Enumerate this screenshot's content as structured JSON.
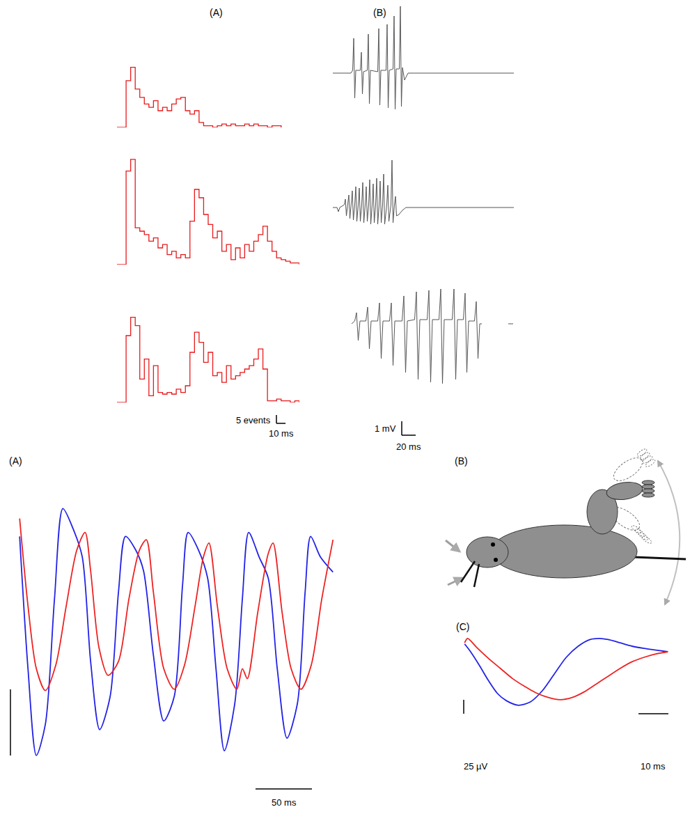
{
  "chart_data": [
    {
      "type": "histogram",
      "panel": "(A)",
      "xlim": [
        0,
        200
      ],
      "ylim": [
        0,
        65
      ],
      "tick_labels": false,
      "grid": false,
      "scale_bar": {
        "x": 10,
        "x_label": "10 ms",
        "y": 5,
        "y_label": "5 events"
      },
      "series": [
        {
          "color": "#e8191b",
          "bins": [
            0,
            5,
            10,
            15,
            20,
            25,
            30,
            35,
            40,
            45,
            50,
            55,
            60,
            65,
            70,
            75,
            80,
            85,
            90,
            95,
            100,
            105,
            110,
            115,
            120,
            125,
            130,
            135,
            140,
            145,
            150,
            155,
            160,
            165,
            170,
            175,
            180
          ],
          "values": [
            0,
            0,
            28,
            36,
            23,
            18,
            14,
            12,
            16,
            10,
            12,
            10,
            14,
            17,
            18,
            10,
            8,
            10,
            3,
            1,
            1,
            0,
            1,
            2,
            1,
            2,
            1,
            1,
            2,
            1,
            2,
            1,
            1,
            0,
            1,
            1
          ]
        },
        {
          "color": "#e8191b",
          "bins": [
            0,
            5,
            10,
            15,
            20,
            25,
            30,
            35,
            40,
            45,
            50,
            55,
            60,
            65,
            70,
            75,
            80,
            85,
            90,
            95,
            100,
            105,
            110,
            115,
            120,
            125,
            130,
            135,
            140,
            145,
            150,
            155,
            160,
            165,
            170,
            175,
            180,
            185,
            190,
            195,
            200
          ],
          "values": [
            0,
            0,
            56,
            63,
            22,
            20,
            18,
            14,
            16,
            10,
            12,
            6,
            8,
            4,
            6,
            4,
            26,
            45,
            40,
            30,
            24,
            16,
            20,
            8,
            12,
            3,
            10,
            4,
            12,
            8,
            14,
            18,
            23,
            14,
            8,
            4,
            3,
            2,
            1,
            1
          ]
        },
        {
          "color": "#e8191b",
          "bins": [
            0,
            5,
            10,
            15,
            20,
            25,
            30,
            35,
            40,
            45,
            50,
            55,
            60,
            65,
            70,
            75,
            80,
            85,
            90,
            95,
            100,
            105,
            110,
            115,
            120,
            125,
            130,
            135,
            140,
            145,
            150,
            155,
            160,
            165,
            170,
            175,
            180,
            185,
            190,
            195,
            200
          ],
          "values": [
            0,
            0,
            40,
            51,
            46,
            14,
            26,
            4,
            22,
            6,
            5,
            6,
            5,
            8,
            6,
            10,
            30,
            42,
            36,
            24,
            30,
            16,
            18,
            12,
            22,
            14,
            16,
            18,
            20,
            22,
            26,
            32,
            20,
            1,
            1,
            2,
            1,
            1,
            0,
            1
          ]
        }
      ]
    },
    {
      "type": "line",
      "panel": "(B)",
      "xlim": [
        0,
        260
      ],
      "ylim": [
        -5,
        5
      ],
      "tick_labels": false,
      "grid": false,
      "scale_bar": {
        "x": 20,
        "x_label": "20 ms",
        "y": 1,
        "y_label": "1 mV"
      },
      "series": [
        {
          "color": "#555555",
          "x": [
            0,
            26,
            28.5,
            30,
            31.5,
            33,
            39.5,
            41,
            42.5,
            44,
            49.5,
            51,
            52.5,
            54,
            64.5,
            66,
            67.5,
            69,
            76.5,
            78,
            79.5,
            81,
            86.5,
            88,
            89.5,
            91,
            95.5,
            97,
            98.5,
            100,
            103,
            108,
            260
          ],
          "values": [
            0,
            0,
            0.2,
            2.5,
            -1.8,
            0.2,
            0.2,
            1.5,
            -1.5,
            0.1,
            0.2,
            2.8,
            -2.2,
            0.2,
            0.1,
            3.2,
            -2.3,
            0.2,
            0.2,
            3.5,
            -2.5,
            0.2,
            0.3,
            4.1,
            -2.6,
            0.3,
            0.3,
            4.8,
            -2.4,
            0.4,
            -0.5,
            0,
            0
          ]
        },
        {
          "color": "#555555",
          "x": [
            0,
            6,
            8,
            10,
            16.5,
            18,
            19.5,
            21.5,
            23,
            24.5,
            26.5,
            28,
            29.5,
            31.5,
            33,
            34.5,
            36.5,
            38,
            39.5,
            41.5,
            43,
            44.5,
            46.5,
            48,
            49.5,
            51.5,
            53,
            54.5,
            56.5,
            58,
            59.5,
            61.5,
            63,
            64.5,
            66.5,
            68,
            69.5,
            71.5,
            73,
            74.5,
            77.5,
            79,
            80.5,
            83.5,
            85,
            86.5,
            88.5,
            90,
            91.5,
            95,
            100,
            105,
            260
          ],
          "values": [
            0,
            0,
            -0.3,
            0,
            0.2,
            0.6,
            -0.6,
            0.2,
            0.9,
            -0.8,
            0.2,
            1.2,
            -0.9,
            0.2,
            1.5,
            -1.0,
            0.2,
            1.4,
            -1.0,
            0.2,
            1.8,
            -1.1,
            0.2,
            1.5,
            -1.0,
            0.2,
            2.0,
            -1.2,
            0.2,
            1.7,
            -1.1,
            0.2,
            2.1,
            -1.2,
            0.2,
            1.9,
            -1.1,
            0.2,
            2.4,
            -1.2,
            0.2,
            1.6,
            -1.0,
            0.2,
            3.4,
            -1.1,
            0.2,
            0.8,
            -0.6,
            -0.5,
            -0.2,
            0,
            0
          ]
        },
        {
          "color": "#555555",
          "x": [
            27,
            31.5,
            34,
            36.5,
            39,
            47.5,
            50,
            52.5,
            55,
            64.5,
            67,
            69.5,
            72,
            81.5,
            84,
            86.5,
            89,
            99.5,
            102,
            104.5,
            107,
            117.5,
            120,
            122.5,
            125,
            135.5,
            138,
            140.5,
            143,
            152.5,
            155,
            157.5,
            160,
            171.5,
            174,
            176.5,
            179,
            187.5,
            190,
            192.5,
            195,
            203.5,
            206,
            208.5,
            211,
            214,
            216,
            252,
            259
          ],
          "values": [
            0,
            0.2,
            0.8,
            -1.2,
            0.2,
            0.2,
            1.2,
            -1.8,
            0.2,
            0.2,
            1.5,
            -2.5,
            0.2,
            0.2,
            1.5,
            -3.0,
            0.2,
            0.2,
            2.0,
            -3.5,
            0.2,
            0.3,
            2.3,
            -4.0,
            0.3,
            0.3,
            2.4,
            -4.2,
            0.3,
            0.3,
            2.5,
            -4.3,
            0.3,
            0.3,
            2.5,
            -4.0,
            0.3,
            0.3,
            2.2,
            -3.5,
            0.2,
            0.2,
            1.6,
            -2.5,
            0,
            0,
            null,
            0,
            0
          ]
        }
      ]
    },
    {
      "type": "line",
      "panel": "(A)",
      "xlim": [
        -10,
        280
      ],
      "ylim": [
        -2.6,
        2.2
      ],
      "tick_labels": false,
      "grid": false,
      "scale_bar": {
        "x": 50,
        "x_label": "50 ms",
        "y": 1
      },
      "series": [
        {
          "color": "#2323e6",
          "x": [
            0,
            7.4,
            14.8,
            22.8,
            30.9,
            38.3,
            47.5,
            55.5,
            62.9,
            70.9,
            80.2,
            87.6,
            93.8,
            103,
            109.8,
            118.5,
            127.7,
            137,
            144.4,
            149.3,
            158.6,
            166.6,
            174,
            181.4,
            190.7,
            197.4,
            203,
            212.2,
            220.3,
            228.3,
            236.9,
            246.2,
            253,
            257.9,
            266.5,
            277.7
          ],
          "values": [
            1.47,
            -0.53,
            -1.84,
            -1.37,
            0.53,
            1.89,
            1.58,
            1.16,
            -0.42,
            -1.45,
            -0.95,
            0.63,
            1.47,
            1.26,
            0.95,
            -0.32,
            -1.32,
            -0.95,
            0.74,
            1.53,
            1.26,
            0.84,
            -0.53,
            -1.77,
            -1.05,
            0.53,
            1.53,
            1.16,
            0.84,
            -0.53,
            -1.58,
            -1.05,
            0.63,
            1.47,
            1.16,
            0.93
          ]
        },
        {
          "color": "#ee2222",
          "x": [
            0,
            7.4,
            14.8,
            22.8,
            32.1,
            41.3,
            50.6,
            58,
            62.9,
            70.3,
            78.4,
            87.6,
            96.9,
            106.1,
            112.3,
            118.5,
            127.7,
            137,
            146.2,
            155.5,
            162.9,
            167.8,
            175.2,
            183.9,
            192.5,
            197.4,
            201.8,
            211,
            220.3,
            224.6,
            232.6,
            240.6,
            249.3,
            258.5,
            267.8,
            277.7
          ],
          "values": [
            1.74,
            0.42,
            -0.53,
            -0.86,
            -0.47,
            0.42,
            1.26,
            1.53,
            0.95,
            -0.21,
            -0.63,
            -0.42,
            0.53,
            1.26,
            1.42,
            0.63,
            -0.53,
            -0.84,
            -0.47,
            0.42,
            1.16,
            1.37,
            0.42,
            -0.53,
            -0.84,
            -0.53,
            -0.68,
            0.32,
            1.21,
            1.37,
            0.32,
            -0.53,
            -0.84,
            -0.47,
            0.53,
            1.42
          ]
        }
      ]
    },
    {
      "type": "line",
      "panel": "(C)",
      "xlim": [
        -1,
        74
      ],
      "ylim": [
        -120,
        60
      ],
      "tick_labels": false,
      "grid": false,
      "scale_bar": {
        "x": 10,
        "x_label": "10 ms",
        "y": 25,
        "y_label": "25 µV"
      },
      "series": [
        {
          "color": "#2323e6",
          "x": [
            0,
            2,
            5,
            8,
            11,
            14,
            18,
            22,
            26,
            30,
            34,
            38,
            42,
            45,
            48,
            52,
            56,
            60,
            64,
            68
          ],
          "values": [
            44,
            30,
            5,
            -22,
            -45,
            -58,
            -66,
            -60,
            -40,
            -10,
            20,
            40,
            52,
            54,
            52,
            46,
            40,
            36,
            33,
            30
          ]
        },
        {
          "color": "#ee2222",
          "x": [
            0,
            1,
            4,
            8,
            12,
            16,
            20,
            24,
            28,
            32,
            36,
            40,
            44,
            48,
            52,
            56,
            60,
            64,
            68
          ],
          "values": [
            46,
            54,
            38,
            18,
            0,
            -18,
            -32,
            -44,
            -52,
            -56,
            -52,
            -42,
            -28,
            -14,
            0,
            12,
            20,
            26,
            30
          ]
        }
      ]
    }
  ],
  "diagram": {
    "panel": "(B)"
  }
}
